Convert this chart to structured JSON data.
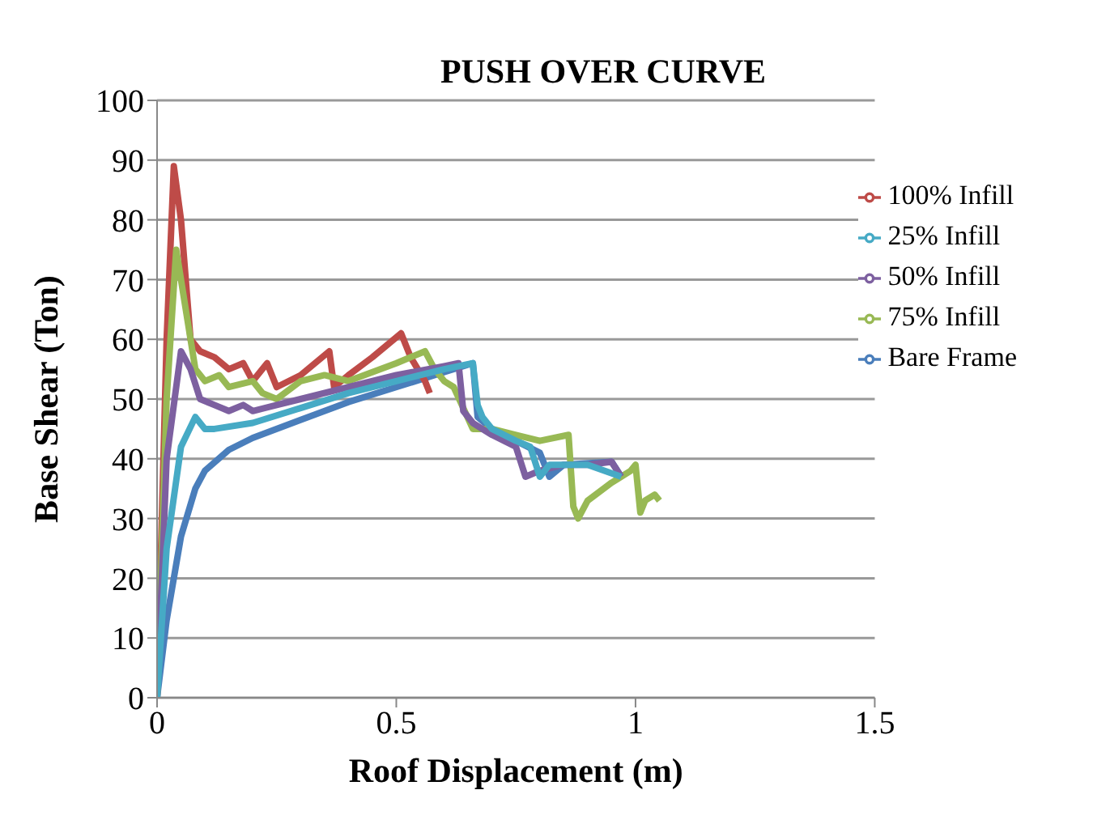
{
  "chart_data": {
    "type": "line",
    "title": "PUSH OVER CURVE",
    "xlabel": "Roof Displacement (m)",
    "ylabel": "Base Shear (Ton)",
    "xlim": [
      0,
      1.5
    ],
    "xticks": [
      0,
      0.5,
      1,
      1.5
    ],
    "ylim": [
      0,
      100
    ],
    "yticks": [
      0,
      10,
      20,
      30,
      40,
      50,
      60,
      70,
      80,
      90,
      100
    ],
    "grid": "y",
    "legend": "top right",
    "marker": "none",
    "line_style": "solid",
    "series": [
      {
        "name": "Bare Frame",
        "color": "#4a7ebb",
        "x": [
          0,
          0.02,
          0.05,
          0.08,
          0.1,
          0.15,
          0.2,
          0.3,
          0.4,
          0.5,
          0.6,
          0.66,
          0.67,
          0.7,
          0.75,
          0.8,
          0.82,
          0.85,
          0.95,
          0.97
        ],
        "values": [
          0,
          13,
          27,
          35,
          38,
          41.5,
          43.5,
          46.5,
          49.5,
          52,
          54.5,
          56,
          47,
          45,
          43,
          41,
          37,
          39,
          39.5,
          37
        ]
      },
      {
        "name": "100% Infill",
        "color": "#be4b48",
        "x": [
          0,
          0.02,
          0.035,
          0.05,
          0.07,
          0.09,
          0.12,
          0.15,
          0.18,
          0.2,
          0.23,
          0.25,
          0.3,
          0.36,
          0.37,
          0.4,
          0.45,
          0.51,
          0.53,
          0.56,
          0.57
        ],
        "values": [
          0,
          60,
          89,
          80,
          60,
          58,
          57,
          55,
          56,
          53,
          56,
          52,
          54,
          58,
          52,
          54,
          57,
          61,
          57,
          53,
          51
        ]
      },
      {
        "name": "75% Infill",
        "color": "#98b954",
        "x": [
          0,
          0.02,
          0.04,
          0.06,
          0.08,
          0.1,
          0.13,
          0.15,
          0.2,
          0.22,
          0.25,
          0.3,
          0.35,
          0.4,
          0.5,
          0.56,
          0.58,
          0.6,
          0.62,
          0.66,
          0.7,
          0.75,
          0.8,
          0.86,
          0.87,
          0.88,
          0.9,
          0.95,
          0.99,
          1.0,
          1.01,
          1.02,
          1.04,
          1.05
        ],
        "values": [
          0,
          50,
          75,
          65,
          55,
          53,
          54,
          52,
          53,
          51,
          50,
          53,
          54,
          53,
          56,
          58,
          55,
          53,
          52,
          45,
          45,
          44,
          43,
          44,
          32,
          30,
          33,
          36,
          38,
          39,
          31,
          33,
          34,
          33
        ]
      },
      {
        "name": "50% Infill",
        "color": "#7d60a0",
        "x": [
          0,
          0.02,
          0.05,
          0.07,
          0.09,
          0.12,
          0.15,
          0.18,
          0.2,
          0.25,
          0.3,
          0.4,
          0.5,
          0.6,
          0.63,
          0.64,
          0.66,
          0.7,
          0.75,
          0.77,
          0.8,
          0.85,
          0.9,
          0.95,
          0.97
        ],
        "values": [
          0,
          40,
          58,
          55,
          50,
          49,
          48,
          49,
          48,
          49,
          50,
          52,
          54,
          55.5,
          56,
          48,
          46,
          44,
          42,
          37,
          38,
          39,
          39,
          39.5,
          37
        ]
      },
      {
        "name": "25% Infill",
        "color": "#46aac5",
        "x": [
          0,
          0.02,
          0.05,
          0.08,
          0.1,
          0.12,
          0.2,
          0.3,
          0.4,
          0.5,
          0.6,
          0.66,
          0.67,
          0.68,
          0.7,
          0.75,
          0.78,
          0.8,
          0.82,
          0.9,
          0.97
        ],
        "values": [
          0,
          25,
          42,
          47,
          45,
          45,
          46,
          48.5,
          51,
          53,
          55,
          56,
          49,
          47,
          45,
          43,
          42,
          37,
          39,
          39,
          37
        ]
      }
    ]
  }
}
